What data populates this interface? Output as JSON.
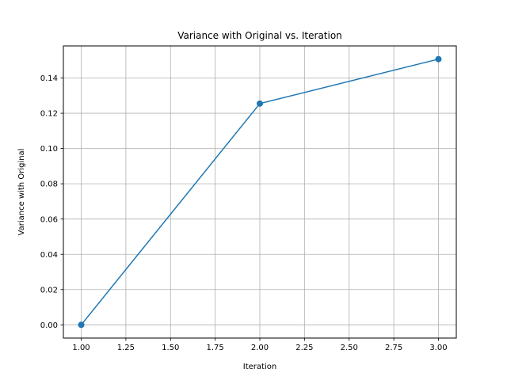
{
  "chart_data": {
    "type": "line",
    "title": "Variance with Original vs. Iteration",
    "xlabel": "Iteration",
    "ylabel": "Variance with Original",
    "x": [
      1.0,
      2.0,
      3.0
    ],
    "series": [
      {
        "values": [
          0.0,
          0.1255,
          0.1507
        ],
        "color": "#1f77b4",
        "marker": "circle"
      }
    ],
    "xlim": [
      0.9,
      3.1
    ],
    "ylim": [
      -0.0075,
      0.1582
    ],
    "xticks": [
      1.0,
      1.25,
      1.5,
      1.75,
      2.0,
      2.25,
      2.5,
      2.75,
      3.0
    ],
    "xtick_labels": [
      "1.00",
      "1.25",
      "1.50",
      "1.75",
      "2.00",
      "2.25",
      "2.50",
      "2.75",
      "3.00"
    ],
    "yticks": [
      0.0,
      0.02,
      0.04,
      0.06,
      0.08,
      0.1,
      0.12,
      0.14
    ],
    "ytick_labels": [
      "0.00",
      "0.02",
      "0.04",
      "0.06",
      "0.08",
      "0.10",
      "0.12",
      "0.14"
    ],
    "grid": true,
    "grid_color": "#b0b0b0"
  }
}
